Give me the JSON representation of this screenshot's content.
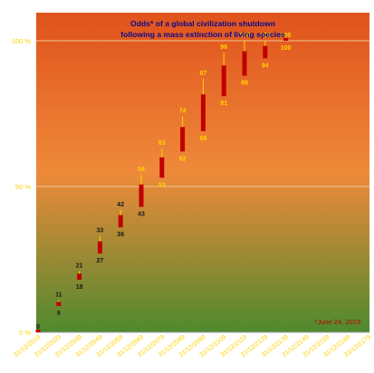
{
  "chart_data": {
    "type": "candlestick",
    "title_lines": [
      "Odds* of a global civilization shutdown",
      "following a mass extinction of living species"
    ],
    "footnote": "*June 24, 2019",
    "ylim": [
      0,
      100
    ],
    "y_ticks": [
      {
        "value": 0,
        "label": "0 %"
      },
      {
        "value": 50,
        "label": "50 %"
      },
      {
        "value": 100,
        "label": "100 %"
      }
    ],
    "gridlines": true,
    "categories": [
      "31/12/2019",
      "31/12/2029",
      "31/12/2039",
      "31/12/2049",
      "31/12/2059",
      "31/12/2069",
      "31/12/2079",
      "31/12/2089",
      "31/12/2099",
      "31/12/2109",
      "31/12/2119",
      "31/12/2129",
      "31/12/2139",
      "31/12/2149",
      "31/12/2159",
      "31/12/2169",
      "31/12/2179"
    ],
    "points": [
      {
        "x": "31/12/2019",
        "low": 0,
        "high": 0,
        "label_high": "0",
        "label_low": ""
      },
      {
        "x": "31/12/2029",
        "low": 9,
        "high": 11,
        "label_high": "11",
        "label_low": "9"
      },
      {
        "x": "31/12/2039",
        "low": 18,
        "high": 21,
        "label_high": "21",
        "label_low": "18"
      },
      {
        "x": "31/12/2049",
        "low": 27,
        "high": 33,
        "label_high": "33",
        "label_low": "27"
      },
      {
        "x": "31/12/2059",
        "low": 36,
        "high": 42,
        "label_high": "42",
        "label_low": "36"
      },
      {
        "x": "31/12/2069",
        "low": 43,
        "high": 54,
        "label_high": "54",
        "label_low": "43"
      },
      {
        "x": "31/12/2079",
        "low": 53,
        "high": 63,
        "label_high": "63",
        "label_low": "53"
      },
      {
        "x": "31/12/2089",
        "low": 62,
        "high": 74,
        "label_high": "74",
        "label_low": "62"
      },
      {
        "x": "31/12/2099",
        "low": 69,
        "high": 87,
        "label_high": "87",
        "label_low": "69"
      },
      {
        "x": "31/12/2109",
        "low": 81,
        "high": 96,
        "label_high": "96",
        "label_low": "81"
      },
      {
        "x": "31/12/2119",
        "low": 88,
        "high": 100,
        "label_high": "100",
        "label_low": "88"
      },
      {
        "x": "31/12/2129",
        "low": 94,
        "high": 100,
        "label_high": "100",
        "label_low": "94"
      },
      {
        "x": "31/12/2139",
        "low": 100,
        "high": 100,
        "label_high": "100",
        "label_low": "100"
      }
    ],
    "colors": {
      "bg_top": "#e0521c",
      "bg_mid": "#ef8a3a",
      "bg_bottom": "#4e8a2e",
      "candle": "#c00000",
      "wick": "#ffd200",
      "label_high": "#ffd200",
      "label_low": "#1a1a1a",
      "title": "#0a0a8a",
      "footnote": "#c00000",
      "gridline": "#f3c48e",
      "axis_label": "#ffd200"
    }
  }
}
